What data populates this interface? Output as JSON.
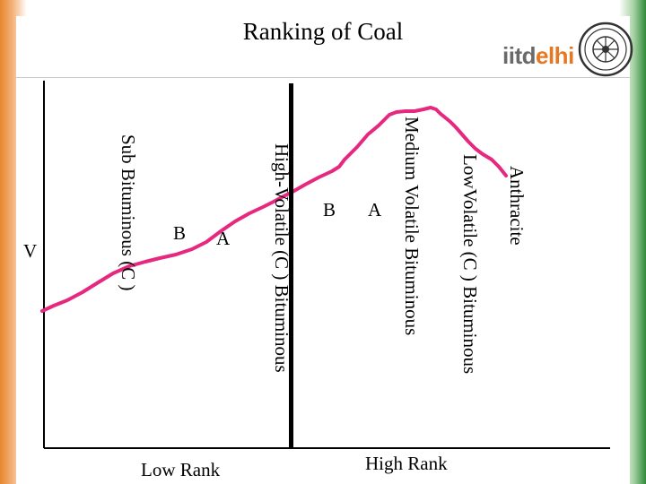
{
  "slide": {
    "title": "Ranking of Coal",
    "logo": {
      "text_left": "iitd",
      "text_right": "elhi"
    },
    "frame_colors": {
      "left": "#e8862f",
      "right": "#2f8a39"
    }
  },
  "diagram": {
    "rank_labels": [
      "Anthracite",
      "LowVolatile (C ) Bituminous",
      "Medium Volatile Bituminous",
      "High-Volatile (C ) Bituminous",
      "Sub Bituminous (C )"
    ],
    "sublabels": [
      "A",
      "B",
      "A",
      "B",
      "V"
    ],
    "axis_labels": {
      "low": "Low Rank",
      "high": "High Rank"
    },
    "colors": {
      "curve": "#e6287f",
      "axis": "#000000"
    }
  }
}
